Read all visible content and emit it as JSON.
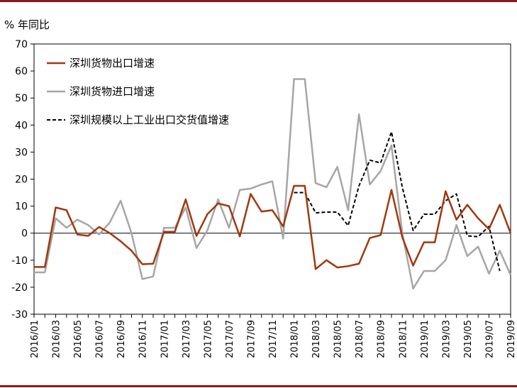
{
  "chart_data": {
    "type": "line",
    "unit_label": "% 年同比",
    "ylim": [
      -30,
      70
    ],
    "yticks": [
      -30,
      -20,
      -10,
      0,
      10,
      20,
      30,
      40,
      50,
      60,
      70
    ],
    "x_months": [
      "2016/01",
      "2016/02",
      "2016/03",
      "2016/04",
      "2016/05",
      "2016/06",
      "2016/07",
      "2016/08",
      "2016/09",
      "2016/10",
      "2016/11",
      "2016/12",
      "2017/01",
      "2017/02",
      "2017/03",
      "2017/04",
      "2017/05",
      "2017/06",
      "2017/07",
      "2017/08",
      "2017/09",
      "2017/10",
      "2017/11",
      "2017/12",
      "2018/01",
      "2018/02",
      "2018/03",
      "2018/04",
      "2018/05",
      "2018/06",
      "2018/07",
      "2018/08",
      "2018/09",
      "2018/10",
      "2018/11",
      "2018/12",
      "2019/01",
      "2019/02",
      "2019/03",
      "2019/04",
      "2019/05",
      "2019/06",
      "2019/07",
      "2019/08",
      "2019/09"
    ],
    "xtick_labels": [
      "2016/01",
      "2016/03",
      "2016/05",
      "2016/07",
      "2016/09",
      "2016/11",
      "2017/01",
      "2017/03",
      "2017/05",
      "2017/07",
      "2017/09",
      "2017/11",
      "2018/01",
      "2018/03",
      "2018/05",
      "2018/07",
      "2018/09",
      "2018/11",
      "2019/01",
      "2019/03",
      "2019/05",
      "2019/07",
      "2019/09"
    ],
    "grid": false,
    "legend_position": "top-left",
    "series": [
      {
        "name": "深圳货物出口增速",
        "color": "#a0380e",
        "style": "solid",
        "values": [
          -12.5,
          -12.5,
          9.5,
          8.5,
          -0.5,
          -1,
          2.3,
          0,
          -3,
          -6.5,
          -11.5,
          -11.3,
          0.5,
          0.5,
          12.5,
          -1,
          7,
          11,
          10,
          -1.2,
          14.5,
          8,
          8.5,
          2.5,
          17.5,
          17.5,
          -13.3,
          -10,
          -12.7,
          -12.2,
          -11.3,
          -1.8,
          -0.7,
          16,
          -1.5,
          -12,
          -3.4,
          -3.4,
          15.5,
          5,
          10.5,
          5.5,
          1.5,
          10.5,
          0
        ]
      },
      {
        "name": "深圳货物进口增速",
        "color": "#a6a6a6",
        "style": "solid",
        "values": [
          -14.5,
          -14.5,
          5.5,
          2,
          5,
          3,
          -0.5,
          4,
          12,
          0,
          -17,
          -16,
          2,
          2,
          9.5,
          -5.5,
          1,
          12.5,
          2,
          16,
          16.5,
          18,
          19.2,
          -2,
          57,
          57,
          18.5,
          17,
          24.5,
          8.5,
          44,
          18,
          23,
          32.5,
          0,
          -20.5,
          -14,
          -14,
          -10,
          3,
          -8.5,
          -5,
          -15,
          -6.5,
          -15.5
        ]
      },
      {
        "name": "深圳规模以上工业出口交货值增速",
        "color": "#000000",
        "style": "dashed",
        "values": [
          null,
          null,
          null,
          null,
          null,
          null,
          null,
          null,
          null,
          null,
          null,
          null,
          null,
          null,
          null,
          null,
          null,
          null,
          null,
          null,
          null,
          null,
          null,
          null,
          15,
          15,
          7.5,
          7.8,
          7.8,
          2.8,
          17.5,
          27,
          26,
          37.5,
          17,
          1,
          7,
          7,
          12,
          14.5,
          -1,
          -1.3,
          2.5,
          -14,
          null
        ]
      }
    ]
  }
}
